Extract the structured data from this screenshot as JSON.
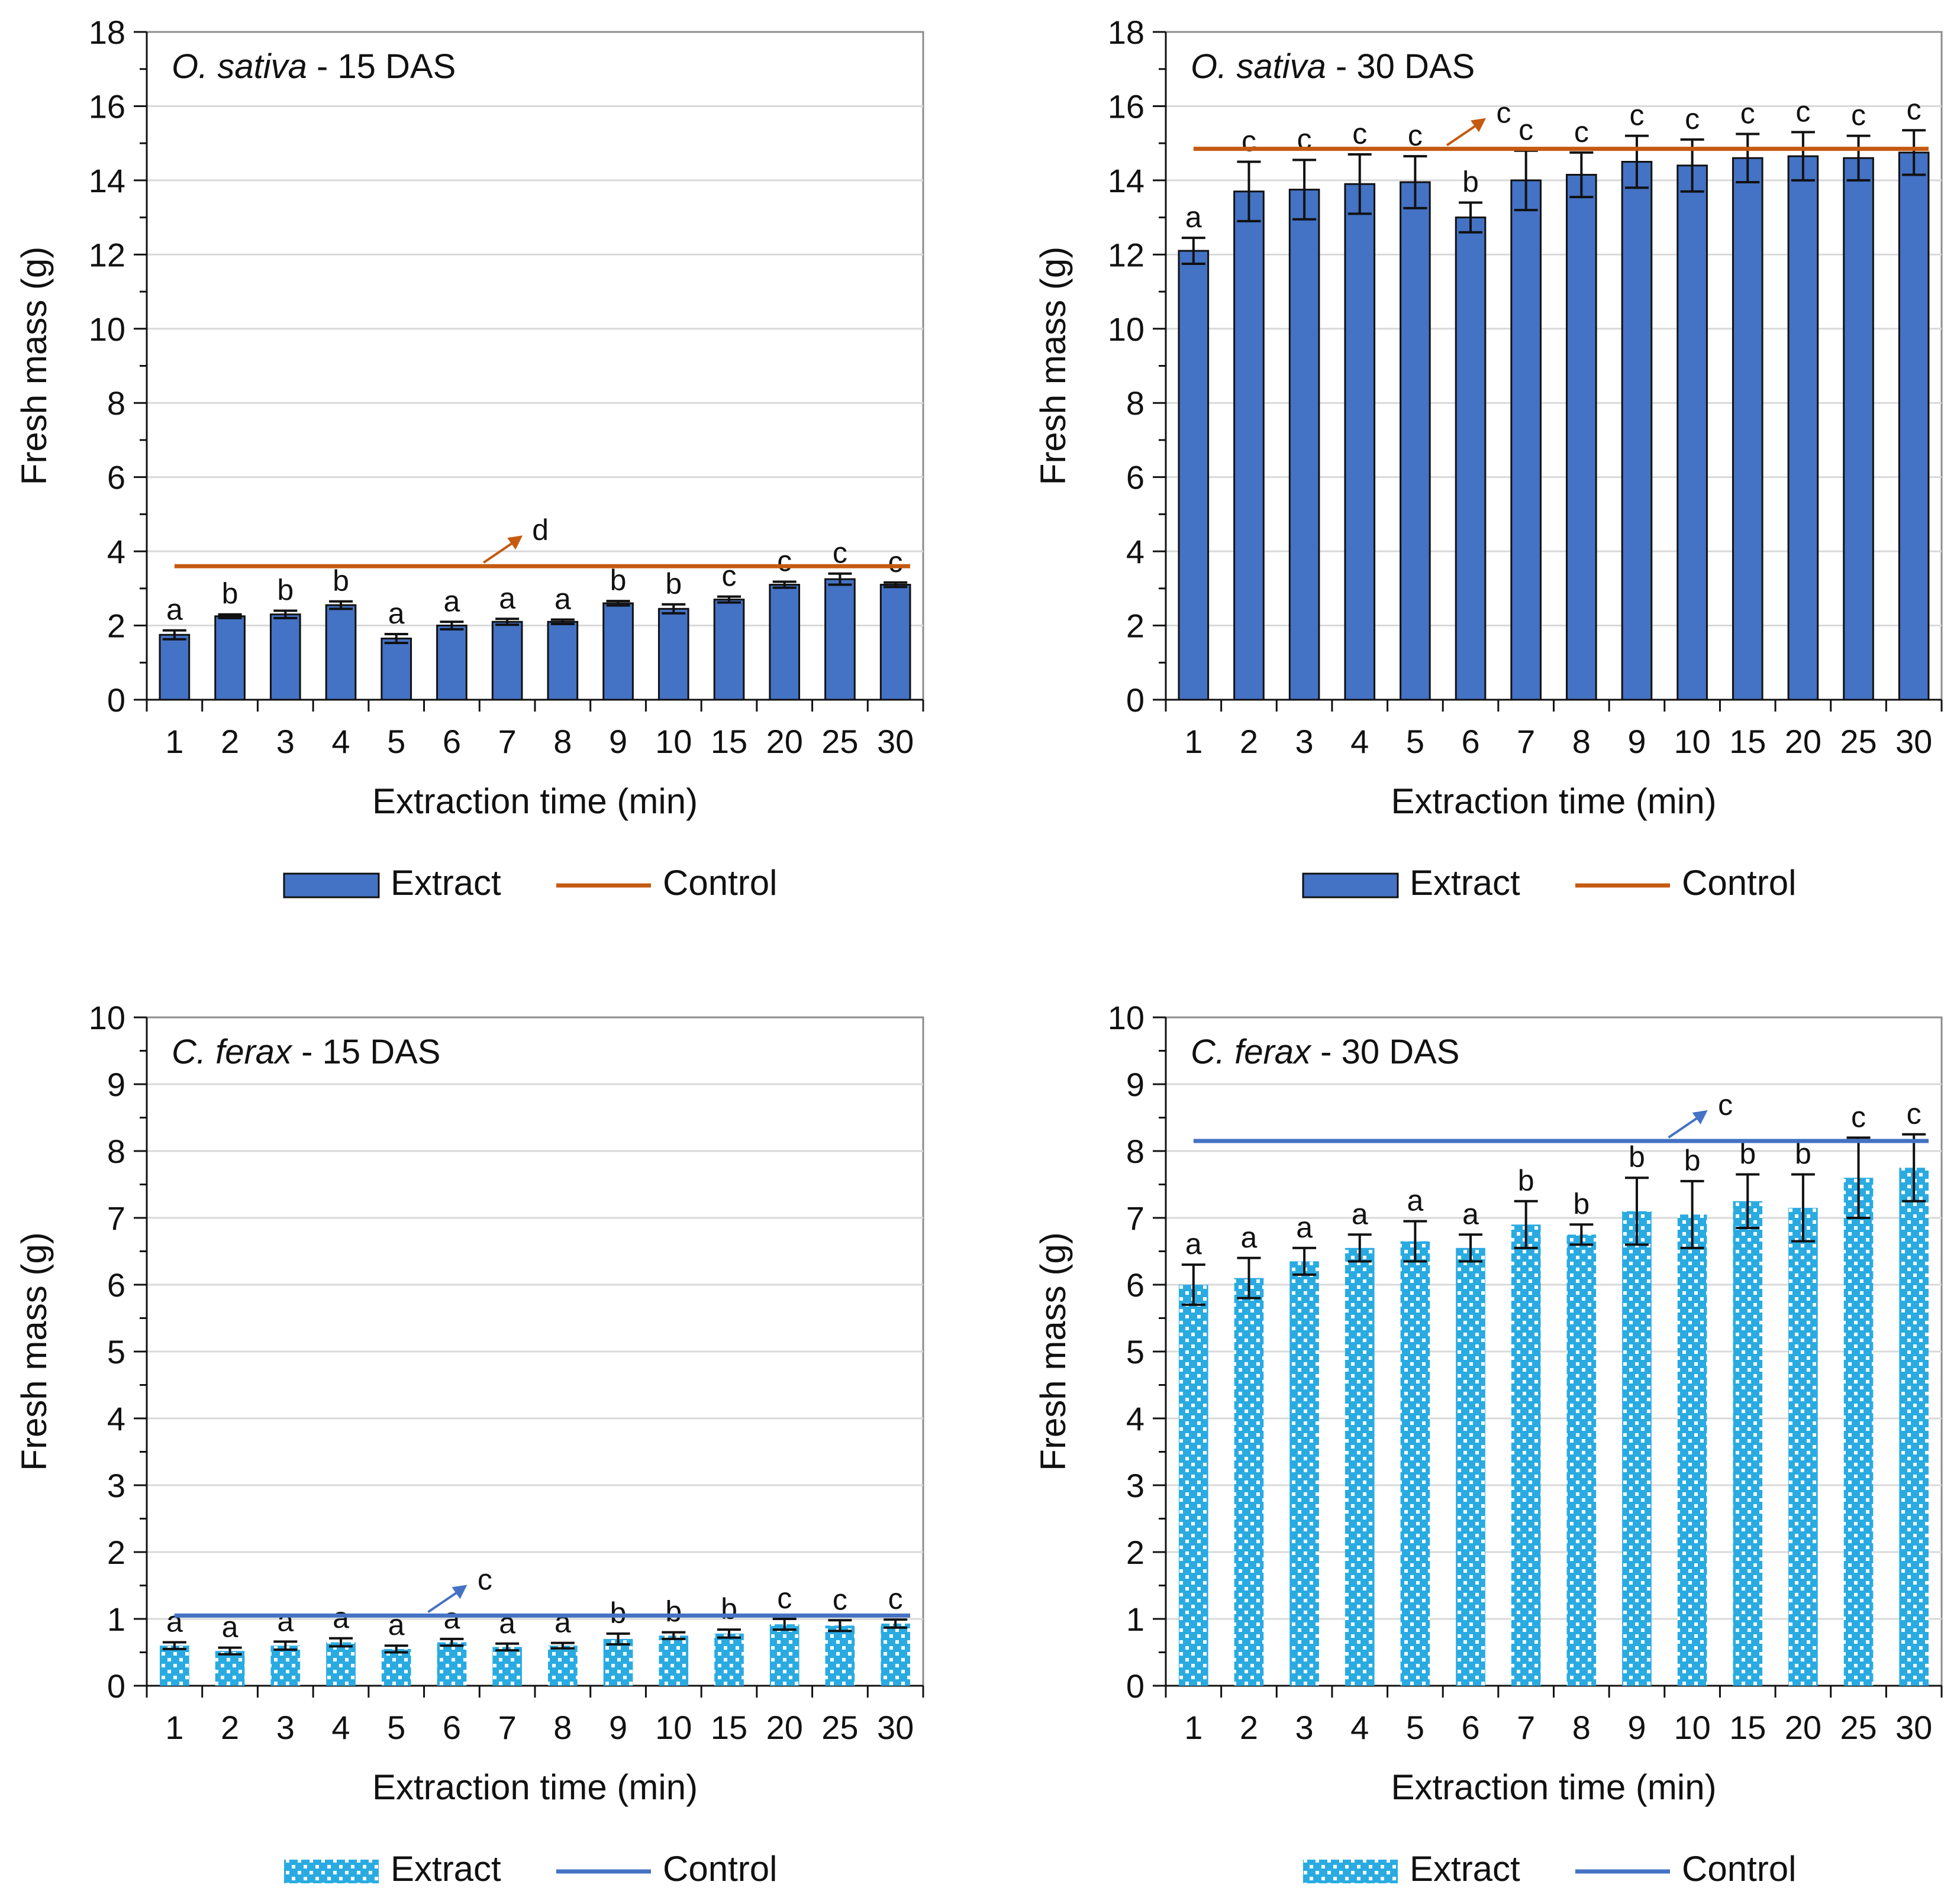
{
  "figure": {
    "extract_label": "Extract",
    "control_label": "Control"
  },
  "chart_data": [
    {
      "type": "bar",
      "title_species": "O. sativa",
      "title_suffix": " - 15 DAS",
      "xlabel": "Extraction time (min)",
      "ylabel": "Fresh mass (g)",
      "ylim": [
        0,
        18
      ],
      "ytick_step": 2,
      "categories": [
        "1",
        "2",
        "3",
        "4",
        "5",
        "6",
        "7",
        "8",
        "9",
        "10",
        "15",
        "20",
        "25",
        "30"
      ],
      "series": [
        {
          "name": "Extract",
          "values": [
            1.75,
            2.25,
            2.3,
            2.55,
            1.65,
            2.0,
            2.1,
            2.1,
            2.6,
            2.45,
            2.7,
            3.1,
            3.25,
            3.1
          ],
          "errors": [
            0.12,
            0.05,
            0.1,
            0.1,
            0.12,
            0.1,
            0.08,
            0.06,
            0.06,
            0.12,
            0.08,
            0.08,
            0.15,
            0.06
          ]
        }
      ],
      "control": {
        "value": 3.6,
        "letter": "d",
        "arrow_category": "7"
      },
      "letters": [
        "a",
        "b",
        "b",
        "b",
        "a",
        "a",
        "a",
        "a",
        "b",
        "b",
        "c",
        "c",
        "c",
        "c"
      ],
      "style": {
        "bar_fill": "#4472C4",
        "pattern": "solid",
        "control_color": "#C55A11"
      }
    },
    {
      "type": "bar",
      "title_species": "O. sativa",
      "title_suffix": " - 30 DAS",
      "xlabel": "Extraction time (min)",
      "ylabel": "Fresh mass (g)",
      "ylim": [
        0,
        18
      ],
      "ytick_step": 2,
      "categories": [
        "1",
        "2",
        "3",
        "4",
        "5",
        "6",
        "7",
        "8",
        "9",
        "10",
        "15",
        "20",
        "25",
        "30"
      ],
      "series": [
        {
          "name": "Extract",
          "values": [
            12.1,
            13.7,
            13.75,
            13.9,
            13.95,
            13.0,
            14.0,
            14.15,
            14.5,
            14.4,
            14.6,
            14.65,
            14.6,
            14.75
          ],
          "errors": [
            0.35,
            0.8,
            0.8,
            0.8,
            0.7,
            0.4,
            0.8,
            0.6,
            0.7,
            0.7,
            0.65,
            0.65,
            0.6,
            0.6
          ]
        }
      ],
      "control": {
        "value": 14.85,
        "letter": "c",
        "arrow_category": "6"
      },
      "letters": [
        "a",
        "c",
        "c",
        "c",
        "c",
        "b",
        "c",
        "c",
        "c",
        "c",
        "c",
        "c",
        "c",
        "c"
      ],
      "style": {
        "bar_fill": "#4472C4",
        "pattern": "solid",
        "control_color": "#C55A11"
      }
    },
    {
      "type": "bar",
      "title_species": "C. ferax",
      "title_suffix": " - 15 DAS",
      "xlabel": "Extraction time (min)",
      "ylabel": "Fresh mass (g)",
      "ylim": [
        0,
        10
      ],
      "ytick_step": 1,
      "categories": [
        "1",
        "2",
        "3",
        "4",
        "5",
        "6",
        "7",
        "8",
        "9",
        "10",
        "15",
        "20",
        "25",
        "30"
      ],
      "series": [
        {
          "name": "Extract",
          "values": [
            0.6,
            0.52,
            0.6,
            0.65,
            0.55,
            0.65,
            0.58,
            0.6,
            0.7,
            0.75,
            0.78,
            0.92,
            0.9,
            0.93
          ],
          "errors": [
            0.05,
            0.05,
            0.06,
            0.06,
            0.05,
            0.05,
            0.05,
            0.04,
            0.08,
            0.05,
            0.06,
            0.08,
            0.08,
            0.06
          ]
        }
      ],
      "control": {
        "value": 1.05,
        "letter": "c",
        "arrow_category": "6"
      },
      "letters": [
        "a",
        "a",
        "a",
        "a",
        "a",
        "a",
        "a",
        "a",
        "b",
        "b",
        "b",
        "c",
        "c",
        "c"
      ],
      "style": {
        "bar_fill": "#29ABE2",
        "pattern": "dotted",
        "control_color": "#4472C4"
      }
    },
    {
      "type": "bar",
      "title_species": "C. ferax",
      "title_suffix": " - 30 DAS",
      "xlabel": "Extraction time (min)",
      "ylabel": "Fresh mass (g)",
      "ylim": [
        0,
        10
      ],
      "ytick_step": 1,
      "categories": [
        "1",
        "2",
        "3",
        "4",
        "5",
        "6",
        "7",
        "8",
        "9",
        "10",
        "15",
        "20",
        "25",
        "30"
      ],
      "series": [
        {
          "name": "Extract",
          "values": [
            6.0,
            6.1,
            6.35,
            6.55,
            6.65,
            6.55,
            6.9,
            6.75,
            7.1,
            7.05,
            7.25,
            7.15,
            7.6,
            7.75
          ],
          "errors": [
            0.3,
            0.3,
            0.2,
            0.2,
            0.3,
            0.2,
            0.35,
            0.15,
            0.5,
            0.5,
            0.4,
            0.5,
            0.6,
            0.5
          ]
        }
      ],
      "control": {
        "value": 8.15,
        "letter": "c",
        "arrow_category": "10"
      },
      "letters": [
        "a",
        "a",
        "a",
        "a",
        "a",
        "a",
        "b",
        "b",
        "b",
        "b",
        "b",
        "b",
        "c",
        "c"
      ],
      "style": {
        "bar_fill": "#29ABE2",
        "pattern": "dotted",
        "control_color": "#4472C4"
      }
    }
  ]
}
